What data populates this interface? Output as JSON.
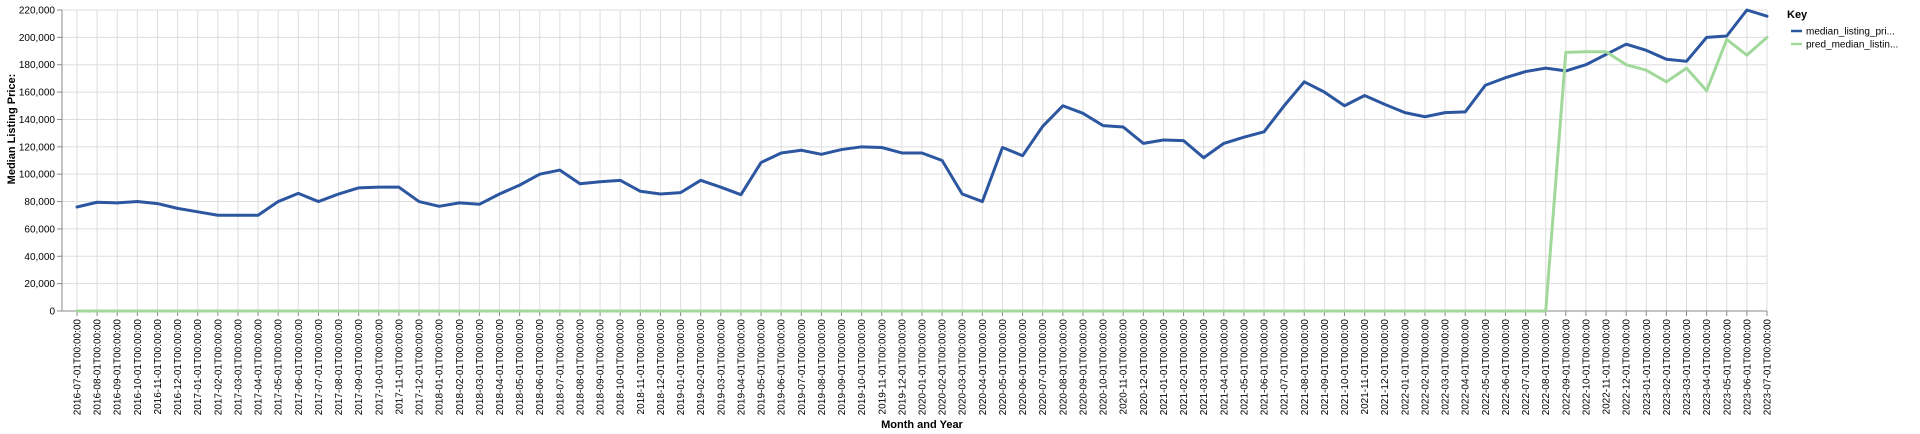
{
  "chart_data": {
    "type": "line",
    "title": "",
    "xlabel": "Month and Year",
    "ylabel": "Median Listing Price:",
    "ylim": [
      0,
      220000
    ],
    "yticks": [
      0,
      20000,
      40000,
      60000,
      80000,
      100000,
      120000,
      140000,
      160000,
      180000,
      200000,
      220000
    ],
    "ytick_labels": [
      "0",
      "20,000",
      "40,000",
      "60,000",
      "80,000",
      "100,000",
      "120,000",
      "140,000",
      "160,000",
      "180,000",
      "200,000",
      "220,000"
    ],
    "grid": true,
    "legend_position": "right",
    "legend_title": "Key",
    "categories": [
      "2016-07-01T00:00:00",
      "2016-08-01T00:00:00",
      "2016-09-01T00:00:00",
      "2016-10-01T00:00:00",
      "2016-11-01T00:00:00",
      "2016-12-01T00:00:00",
      "2017-01-01T00:00:00",
      "2017-02-01T00:00:00",
      "2017-03-01T00:00:00",
      "2017-04-01T00:00:00",
      "2017-05-01T00:00:00",
      "2017-06-01T00:00:00",
      "2017-07-01T00:00:00",
      "2017-08-01T00:00:00",
      "2017-09-01T00:00:00",
      "2017-10-01T00:00:00",
      "2017-11-01T00:00:00",
      "2017-12-01T00:00:00",
      "2018-01-01T00:00:00",
      "2018-02-01T00:00:00",
      "2018-03-01T00:00:00",
      "2018-04-01T00:00:00",
      "2018-05-01T00:00:00",
      "2018-06-01T00:00:00",
      "2018-07-01T00:00:00",
      "2018-08-01T00:00:00",
      "2018-09-01T00:00:00",
      "2018-10-01T00:00:00",
      "2018-11-01T00:00:00",
      "2018-12-01T00:00:00",
      "2019-01-01T00:00:00",
      "2019-02-01T00:00:00",
      "2019-03-01T00:00:00",
      "2019-04-01T00:00:00",
      "2019-05-01T00:00:00",
      "2019-06-01T00:00:00",
      "2019-07-01T00:00:00",
      "2019-08-01T00:00:00",
      "2019-09-01T00:00:00",
      "2019-10-01T00:00:00",
      "2019-11-01T00:00:00",
      "2019-12-01T00:00:00",
      "2020-01-01T00:00:00",
      "2020-02-01T00:00:00",
      "2020-03-01T00:00:00",
      "2020-04-01T00:00:00",
      "2020-05-01T00:00:00",
      "2020-06-01T00:00:00",
      "2020-07-01T00:00:00",
      "2020-08-01T00:00:00",
      "2020-09-01T00:00:00",
      "2020-10-01T00:00:00",
      "2020-11-01T00:00:00",
      "2020-12-01T00:00:00",
      "2021-01-01T00:00:00",
      "2021-02-01T00:00:00",
      "2021-03-01T00:00:00",
      "2021-04-01T00:00:00",
      "2021-05-01T00:00:00",
      "2021-06-01T00:00:00",
      "2021-07-01T00:00:00",
      "2021-08-01T00:00:00",
      "2021-09-01T00:00:00",
      "2021-10-01T00:00:00",
      "2021-11-01T00:00:00",
      "2021-12-01T00:00:00",
      "2022-01-01T00:00:00",
      "2022-02-01T00:00:00",
      "2022-03-01T00:00:00",
      "2022-04-01T00:00:00",
      "2022-05-01T00:00:00",
      "2022-06-01T00:00:00",
      "2022-07-01T00:00:00",
      "2022-08-01T00:00:00",
      "2022-09-01T00:00:00",
      "2022-10-01T00:00:00",
      "2022-11-01T00:00:00",
      "2022-12-01T00:00:00",
      "2023-01-01T00:00:00",
      "2023-02-01T00:00:00",
      "2023-03-01T00:00:00",
      "2023-04-01T00:00:00",
      "2023-05-01T00:00:00",
      "2023-06-01T00:00:00",
      "2023-07-01T00:00:00"
    ],
    "series": [
      {
        "name": "median_listing_pri...",
        "color": "#2c56a0",
        "values": [
          76000,
          79500,
          79000,
          80000,
          78500,
          75000,
          72500,
          70000,
          70000,
          70000,
          80000,
          86000,
          80000,
          85500,
          90000,
          90500,
          90500,
          80000,
          76500,
          79000,
          78000,
          85500,
          92000,
          100000,
          103000,
          93000,
          94500,
          95500,
          87500,
          85500,
          86500,
          95500,
          90500,
          85000,
          108500,
          115500,
          117500,
          114500,
          118000,
          120000,
          119500,
          115500,
          115500,
          110000,
          85500,
          80000,
          119500,
          113500,
          135000,
          150000,
          144500,
          135500,
          134500,
          122500,
          125000,
          124500,
          112000,
          122500,
          127000,
          131000,
          150000,
          167500,
          160000,
          150000,
          157500,
          151000,
          145000,
          142000,
          145000,
          145500,
          165000,
          170500,
          175000,
          177500,
          175500,
          180000,
          187500,
          195000,
          190500,
          184000,
          182500,
          200000,
          201000,
          220000,
          215500
        ]
      },
      {
        "name": "pred_median_listin...",
        "color": "#a1d99b",
        "values": [
          0,
          0,
          0,
          0,
          0,
          0,
          0,
          0,
          0,
          0,
          0,
          0,
          0,
          0,
          0,
          0,
          0,
          0,
          0,
          0,
          0,
          0,
          0,
          0,
          0,
          0,
          0,
          0,
          0,
          0,
          0,
          0,
          0,
          0,
          0,
          0,
          0,
          0,
          0,
          0,
          0,
          0,
          0,
          0,
          0,
          0,
          0,
          0,
          0,
          0,
          0,
          0,
          0,
          0,
          0,
          0,
          0,
          0,
          0,
          0,
          0,
          0,
          0,
          0,
          0,
          0,
          0,
          0,
          0,
          0,
          0,
          0,
          0,
          0,
          189000,
          189500,
          189500,
          180000,
          176000,
          167500,
          177500,
          161000,
          198500,
          187000,
          200000
        ]
      }
    ]
  }
}
